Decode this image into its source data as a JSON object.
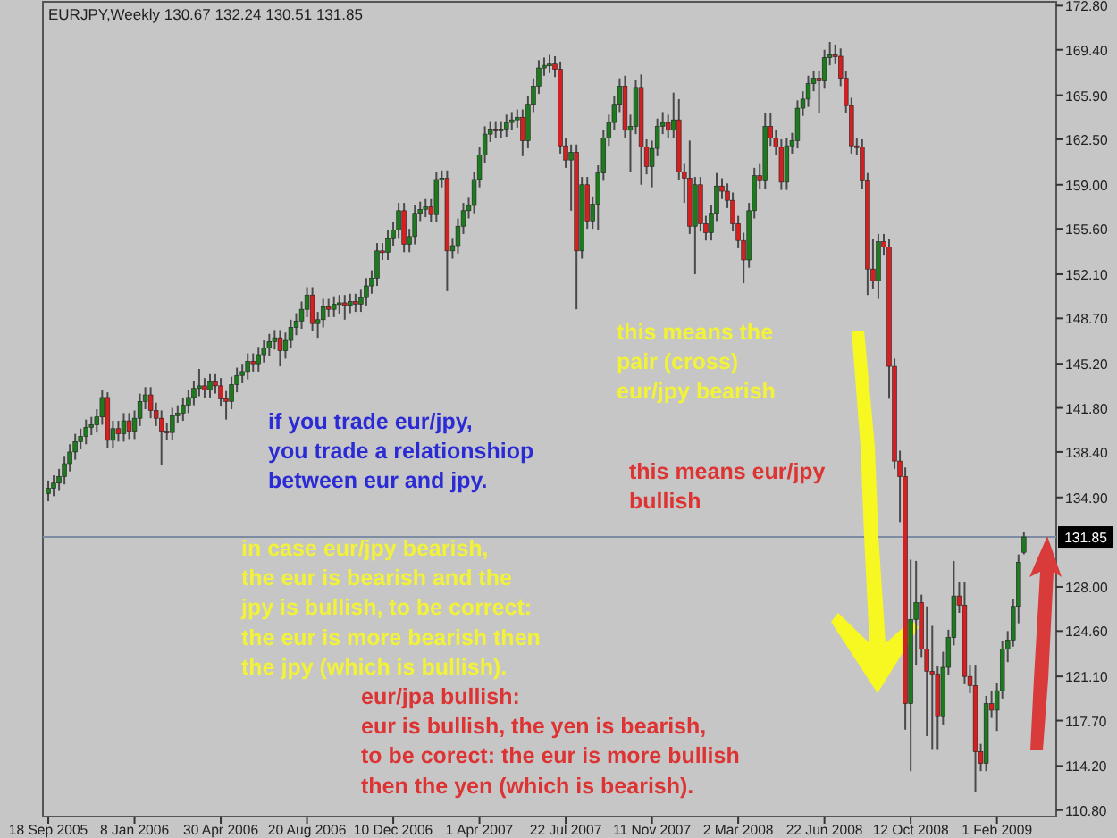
{
  "chart_data": {
    "type": "candlestick",
    "title": "EURJPY,Weekly 130.67 132.24 130.51 131.85",
    "x": [
      "2005-09-18",
      "2005-09-25",
      "2005-10-02",
      "2005-10-09",
      "2005-10-16",
      "2005-10-23",
      "2005-10-30",
      "2005-11-06",
      "2005-11-13",
      "2005-11-20",
      "2005-11-27",
      "2005-12-04",
      "2005-12-11",
      "2005-12-18",
      "2005-12-25",
      "2006-01-01",
      "2006-01-08",
      "2006-01-15",
      "2006-01-22",
      "2006-01-29",
      "2006-02-05",
      "2006-02-12",
      "2006-02-19",
      "2006-02-26",
      "2006-03-05",
      "2006-03-12",
      "2006-03-19",
      "2006-03-26",
      "2006-04-02",
      "2006-04-09",
      "2006-04-16",
      "2006-04-23",
      "2006-04-30",
      "2006-05-07",
      "2006-05-14",
      "2006-05-21",
      "2006-05-28",
      "2006-06-04",
      "2006-06-11",
      "2006-06-18",
      "2006-06-25",
      "2006-07-02",
      "2006-07-09",
      "2006-07-16",
      "2006-07-23",
      "2006-07-30",
      "2006-08-06",
      "2006-08-13",
      "2006-08-20",
      "2006-08-27",
      "2006-09-03",
      "2006-09-10",
      "2006-09-17",
      "2006-09-24",
      "2006-10-01",
      "2006-10-08",
      "2006-10-15",
      "2006-10-22",
      "2006-10-29",
      "2006-11-05",
      "2006-11-12",
      "2006-11-19",
      "2006-11-26",
      "2006-12-03",
      "2006-12-10",
      "2006-12-17",
      "2006-12-24",
      "2006-12-31",
      "2007-01-07",
      "2007-01-14",
      "2007-01-21",
      "2007-01-28",
      "2007-02-04",
      "2007-02-11",
      "2007-02-18",
      "2007-02-25",
      "2007-03-04",
      "2007-03-11",
      "2007-03-18",
      "2007-03-25",
      "2007-04-01",
      "2007-04-08",
      "2007-04-15",
      "2007-04-22",
      "2007-04-29",
      "2007-05-06",
      "2007-05-13",
      "2007-05-20",
      "2007-05-27",
      "2007-06-03",
      "2007-06-10",
      "2007-06-17",
      "2007-06-24",
      "2007-07-01",
      "2007-07-08",
      "2007-07-15",
      "2007-07-22",
      "2007-07-29",
      "2007-08-05",
      "2007-08-12",
      "2007-08-19",
      "2007-08-26",
      "2007-09-02",
      "2007-09-09",
      "2007-09-16",
      "2007-09-23",
      "2007-09-30",
      "2007-10-07",
      "2007-10-14",
      "2007-10-21",
      "2007-10-28",
      "2007-11-04",
      "2007-11-11",
      "2007-11-18",
      "2007-11-25",
      "2007-12-02",
      "2007-12-09",
      "2007-12-16",
      "2007-12-23",
      "2007-12-30",
      "2008-01-06",
      "2008-01-13",
      "2008-01-20",
      "2008-01-27",
      "2008-02-03",
      "2008-02-10",
      "2008-02-17",
      "2008-02-24",
      "2008-03-02",
      "2008-03-09",
      "2008-03-16",
      "2008-03-23",
      "2008-03-30",
      "2008-04-06",
      "2008-04-13",
      "2008-04-20",
      "2008-04-27",
      "2008-05-04",
      "2008-05-11",
      "2008-05-18",
      "2008-05-25",
      "2008-06-01",
      "2008-06-08",
      "2008-06-15",
      "2008-06-22",
      "2008-06-29",
      "2008-07-06",
      "2008-07-13",
      "2008-07-20",
      "2008-07-27",
      "2008-08-03",
      "2008-08-10",
      "2008-08-17",
      "2008-08-24",
      "2008-08-31",
      "2008-09-07",
      "2008-09-14",
      "2008-09-21",
      "2008-09-28",
      "2008-10-05",
      "2008-10-12",
      "2008-10-19",
      "2008-10-26",
      "2008-11-02",
      "2008-11-09",
      "2008-11-16",
      "2008-11-23",
      "2008-11-30",
      "2008-12-07",
      "2008-12-14",
      "2008-12-21",
      "2008-12-28",
      "2009-01-04",
      "2009-01-11",
      "2009-01-18",
      "2009-01-25",
      "2009-02-01",
      "2009-02-08",
      "2009-02-15",
      "2009-02-22",
      "2009-03-01",
      "2009-03-08"
    ],
    "ohlc": [
      [
        135.2,
        136.2,
        134.6,
        135.6
      ],
      [
        135.6,
        136.6,
        135.0,
        136.0
      ],
      [
        136.0,
        137.1,
        135.4,
        136.5
      ],
      [
        136.5,
        138.1,
        135.9,
        137.5
      ],
      [
        137.5,
        139.0,
        136.9,
        138.4
      ],
      [
        138.4,
        139.8,
        137.8,
        139.2
      ],
      [
        139.2,
        140.2,
        138.6,
        139.6
      ],
      [
        139.6,
        140.9,
        139.0,
        140.3
      ],
      [
        140.3,
        141.1,
        139.7,
        140.5
      ],
      [
        140.5,
        141.7,
        139.9,
        141.1
      ],
      [
        141.1,
        143.2,
        140.5,
        142.6
      ],
      [
        142.6,
        143.0,
        138.7,
        139.3
      ],
      [
        139.3,
        140.8,
        138.7,
        140.2
      ],
      [
        140.2,
        140.8,
        139.2,
        139.8
      ],
      [
        139.8,
        141.4,
        139.2,
        140.8
      ],
      [
        140.8,
        141.4,
        139.4,
        140.0
      ],
      [
        140.0,
        141.6,
        139.4,
        141.0
      ],
      [
        141.0,
        142.9,
        140.4,
        142.3
      ],
      [
        142.3,
        143.4,
        141.7,
        142.8
      ],
      [
        142.8,
        143.4,
        141.0,
        141.6
      ],
      [
        141.6,
        142.2,
        140.4,
        141.0
      ],
      [
        141.0,
        141.6,
        137.4,
        140.0
      ],
      [
        140.0,
        140.6,
        139.3,
        139.9
      ],
      [
        139.9,
        141.8,
        139.3,
        141.2
      ],
      [
        141.2,
        142.0,
        140.6,
        141.4
      ],
      [
        141.4,
        142.6,
        140.8,
        142.0
      ],
      [
        142.0,
        143.2,
        141.4,
        142.6
      ],
      [
        142.6,
        143.9,
        142.0,
        143.3
      ],
      [
        143.3,
        144.8,
        142.7,
        143.5
      ],
      [
        143.5,
        144.1,
        142.6,
        143.2
      ],
      [
        143.2,
        144.4,
        142.6,
        143.8
      ],
      [
        143.8,
        144.4,
        142.9,
        143.5
      ],
      [
        143.5,
        144.1,
        141.9,
        142.5
      ],
      [
        142.5,
        143.1,
        140.9,
        142.3
      ],
      [
        142.3,
        144.2,
        141.7,
        143.6
      ],
      [
        143.6,
        144.9,
        143.0,
        144.3
      ],
      [
        144.3,
        145.2,
        143.7,
        144.6
      ],
      [
        144.6,
        146.0,
        144.0,
        145.4
      ],
      [
        145.4,
        146.0,
        144.6,
        145.2
      ],
      [
        145.2,
        146.5,
        144.6,
        145.9
      ],
      [
        145.9,
        147.0,
        145.3,
        146.4
      ],
      [
        146.4,
        147.5,
        145.8,
        146.9
      ],
      [
        146.9,
        147.8,
        146.3,
        147.2
      ],
      [
        147.2,
        147.8,
        145.0,
        146.2
      ],
      [
        146.2,
        147.6,
        145.6,
        147.0
      ],
      [
        147.0,
        148.6,
        146.4,
        148.0
      ],
      [
        148.0,
        149.1,
        147.4,
        148.5
      ],
      [
        148.5,
        150.0,
        147.9,
        149.4
      ],
      [
        149.4,
        151.1,
        148.8,
        150.5
      ],
      [
        150.5,
        151.1,
        147.7,
        148.3
      ],
      [
        148.3,
        149.2,
        147.2,
        148.6
      ],
      [
        148.6,
        150.2,
        148.0,
        149.6
      ],
      [
        149.6,
        150.2,
        148.8,
        149.4
      ],
      [
        149.4,
        150.4,
        148.8,
        149.8
      ],
      [
        149.8,
        150.5,
        149.0,
        149.9
      ],
      [
        149.9,
        150.5,
        148.6,
        149.7
      ],
      [
        149.7,
        150.6,
        149.1,
        150.0
      ],
      [
        150.0,
        150.6,
        149.2,
        149.8
      ],
      [
        149.8,
        150.9,
        149.2,
        150.3
      ],
      [
        150.3,
        151.8,
        149.7,
        151.2
      ],
      [
        151.2,
        152.4,
        150.6,
        151.8
      ],
      [
        151.8,
        154.5,
        151.2,
        153.9
      ],
      [
        153.9,
        154.5,
        153.2,
        153.8
      ],
      [
        153.8,
        155.5,
        153.2,
        154.9
      ],
      [
        154.9,
        156.1,
        154.3,
        155.5
      ],
      [
        155.5,
        157.6,
        154.9,
        157.0
      ],
      [
        157.0,
        157.6,
        153.8,
        154.4
      ],
      [
        154.4,
        155.6,
        153.8,
        155.0
      ],
      [
        155.0,
        157.4,
        154.4,
        156.8
      ],
      [
        156.8,
        157.7,
        156.2,
        157.1
      ],
      [
        157.1,
        157.9,
        156.5,
        157.3
      ],
      [
        157.3,
        157.9,
        156.1,
        156.7
      ],
      [
        156.7,
        160.0,
        156.1,
        159.4
      ],
      [
        159.4,
        160.1,
        158.8,
        159.5
      ],
      [
        159.5,
        160.1,
        150.8,
        153.9
      ],
      [
        153.9,
        154.9,
        153.3,
        154.3
      ],
      [
        154.3,
        156.4,
        153.7,
        155.8
      ],
      [
        155.8,
        157.6,
        155.2,
        157.0
      ],
      [
        157.0,
        158.0,
        156.4,
        157.4
      ],
      [
        157.4,
        160.0,
        156.8,
        159.4
      ],
      [
        159.4,
        161.9,
        158.8,
        161.3
      ],
      [
        161.3,
        163.5,
        160.7,
        162.9
      ],
      [
        162.9,
        163.9,
        162.3,
        163.3
      ],
      [
        163.3,
        163.9,
        162.6,
        163.2
      ],
      [
        163.2,
        163.9,
        162.6,
        163.3
      ],
      [
        163.3,
        164.4,
        162.7,
        163.8
      ],
      [
        163.8,
        164.6,
        163.2,
        164.0
      ],
      [
        164.0,
        164.8,
        163.4,
        164.2
      ],
      [
        164.2,
        164.8,
        161.2,
        162.4
      ],
      [
        162.4,
        165.8,
        161.8,
        165.2
      ],
      [
        165.2,
        167.2,
        164.6,
        166.6
      ],
      [
        166.6,
        168.6,
        166.0,
        168.0
      ],
      [
        168.0,
        168.8,
        167.4,
        168.2
      ],
      [
        168.2,
        169.0,
        167.6,
        168.3
      ],
      [
        168.3,
        168.9,
        167.3,
        167.9
      ],
      [
        167.9,
        168.5,
        161.4,
        162.0
      ],
      [
        162.0,
        162.6,
        160.3,
        160.9
      ],
      [
        160.9,
        162.1,
        157.0,
        161.5
      ],
      [
        161.5,
        162.1,
        149.4,
        153.9
      ],
      [
        153.9,
        159.6,
        153.3,
        159.0
      ],
      [
        159.0,
        159.6,
        155.6,
        156.2
      ],
      [
        156.2,
        158.1,
        155.6,
        157.5
      ],
      [
        157.5,
        160.5,
        155.5,
        159.9
      ],
      [
        159.9,
        163.2,
        159.3,
        162.6
      ],
      [
        162.6,
        164.4,
        162.0,
        163.8
      ],
      [
        163.8,
        165.8,
        163.2,
        165.2
      ],
      [
        165.2,
        167.2,
        164.6,
        166.6
      ],
      [
        166.6,
        167.4,
        162.6,
        163.2
      ],
      [
        163.2,
        164.4,
        160.0,
        163.5
      ],
      [
        163.5,
        167.1,
        162.9,
        166.5
      ],
      [
        166.5,
        167.5,
        159.0,
        161.9
      ],
      [
        161.9,
        162.5,
        159.8,
        160.4
      ],
      [
        160.4,
        162.4,
        158.8,
        161.8
      ],
      [
        161.8,
        164.1,
        161.2,
        163.5
      ],
      [
        163.5,
        164.6,
        162.9,
        163.8
      ],
      [
        163.8,
        164.4,
        162.6,
        163.2
      ],
      [
        163.2,
        166.1,
        162.6,
        164.0
      ],
      [
        164.0,
        165.6,
        159.4,
        160.0
      ],
      [
        160.0,
        160.6,
        157.6,
        159.5
      ],
      [
        159.5,
        162.4,
        155.2,
        155.8
      ],
      [
        155.8,
        159.6,
        152.1,
        159.0
      ],
      [
        159.0,
        159.6,
        155.4,
        156.0
      ],
      [
        156.0,
        156.6,
        154.7,
        155.3
      ],
      [
        155.3,
        157.4,
        154.7,
        156.8
      ],
      [
        156.8,
        159.9,
        156.2,
        158.9
      ],
      [
        158.9,
        159.5,
        157.9,
        158.5
      ],
      [
        158.5,
        159.1,
        157.2,
        157.8
      ],
      [
        157.8,
        158.4,
        155.4,
        156.0
      ],
      [
        156.0,
        156.6,
        154.1,
        154.7
      ],
      [
        154.7,
        155.3,
        151.4,
        153.2
      ],
      [
        153.2,
        157.6,
        152.6,
        157.0
      ],
      [
        157.0,
        160.3,
        156.4,
        159.7
      ],
      [
        159.7,
        160.6,
        158.7,
        159.3
      ],
      [
        159.3,
        164.5,
        158.7,
        163.5
      ],
      [
        163.5,
        164.5,
        162.0,
        162.6
      ],
      [
        162.6,
        163.2,
        161.3,
        161.9
      ],
      [
        161.9,
        162.5,
        158.6,
        159.2
      ],
      [
        159.2,
        162.6,
        158.6,
        162.0
      ],
      [
        162.0,
        163.0,
        161.4,
        162.4
      ],
      [
        162.4,
        165.5,
        161.8,
        164.9
      ],
      [
        164.9,
        166.2,
        164.3,
        165.6
      ],
      [
        165.6,
        167.4,
        165.0,
        166.8
      ],
      [
        166.8,
        167.8,
        166.2,
        167.2
      ],
      [
        167.2,
        167.8,
        164.5,
        167.0
      ],
      [
        167.0,
        169.4,
        166.4,
        168.8
      ],
      [
        168.8,
        170.0,
        168.2,
        169.0
      ],
      [
        169.0,
        169.8,
        168.3,
        168.9
      ],
      [
        168.9,
        169.5,
        166.6,
        167.2
      ],
      [
        167.2,
        167.8,
        164.5,
        165.1
      ],
      [
        165.1,
        165.7,
        161.4,
        162.0
      ],
      [
        162.0,
        162.6,
        161.3,
        161.9
      ],
      [
        161.9,
        162.5,
        158.7,
        159.3
      ],
      [
        159.3,
        159.9,
        150.5,
        152.5
      ],
      [
        152.5,
        154.8,
        151.0,
        151.6
      ],
      [
        151.6,
        155.2,
        150.2,
        154.6
      ],
      [
        154.6,
        155.2,
        153.6,
        154.2
      ],
      [
        154.2,
        154.8,
        142.5,
        145.0
      ],
      [
        145.0,
        145.6,
        137.1,
        137.7
      ],
      [
        137.7,
        138.5,
        133.0,
        136.5
      ],
      [
        136.5,
        137.2,
        117.0,
        119.0
      ],
      [
        119.0,
        130.1,
        113.8,
        125.5
      ],
      [
        125.5,
        130.0,
        122.0,
        126.8
      ],
      [
        126.8,
        127.4,
        122.6,
        123.2
      ],
      [
        123.2,
        126.5,
        116.5,
        121.5
      ],
      [
        121.5,
        125.0,
        115.5,
        121.3
      ],
      [
        121.3,
        121.9,
        115.5,
        118.0
      ],
      [
        118.0,
        123.0,
        117.4,
        121.8
      ],
      [
        121.8,
        124.7,
        121.2,
        124.1
      ],
      [
        124.1,
        130.0,
        123.5,
        127.3
      ],
      [
        127.3,
        128.4,
        126.0,
        126.6
      ],
      [
        126.6,
        128.4,
        120.5,
        121.1
      ],
      [
        121.1,
        122.0,
        119.8,
        120.4
      ],
      [
        120.4,
        122.0,
        112.2,
        115.3
      ],
      [
        115.3,
        115.9,
        113.8,
        114.4
      ],
      [
        114.4,
        119.6,
        113.8,
        119.0
      ],
      [
        119.0,
        120.0,
        117.9,
        118.5
      ],
      [
        118.5,
        120.6,
        116.9,
        120.0
      ],
      [
        120.0,
        123.8,
        119.4,
        123.2
      ],
      [
        123.2,
        124.6,
        122.2,
        123.9
      ],
      [
        123.9,
        127.1,
        123.4,
        126.5
      ],
      [
        126.5,
        130.5,
        125.2,
        129.9
      ],
      [
        130.67,
        132.24,
        130.51,
        131.85
      ]
    ],
    "colors": [
      "#1e7a1e",
      "#1e7a1e",
      "#1e7a1e",
      "#1e7a1e",
      "#1e7a1e",
      "#1e7a1e",
      "#1e7a1e",
      "#1e7a1e",
      "#1e7a1e",
      "#1e7a1e",
      "#1e7a1e",
      "#d42020",
      "#1e7a1e",
      "#d42020",
      "#1e7a1e",
      "#d42020",
      "#1e7a1e",
      "#1e7a1e",
      "#1e7a1e",
      "#d42020",
      "#d42020",
      "#d42020",
      "#d42020",
      "#1e7a1e",
      "#1e7a1e",
      "#1e7a1e",
      "#1e7a1e",
      "#1e7a1e",
      "#1e7a1e",
      "#d42020",
      "#1e7a1e",
      "#d42020",
      "#d42020",
      "#d42020",
      "#1e7a1e",
      "#1e7a1e",
      "#1e7a1e",
      "#1e7a1e",
      "#d42020",
      "#1e7a1e",
      "#1e7a1e",
      "#1e7a1e",
      "#1e7a1e",
      "#d42020",
      "#1e7a1e",
      "#1e7a1e",
      "#1e7a1e",
      "#1e7a1e",
      "#1e7a1e",
      "#d42020",
      "#1e7a1e",
      "#1e7a1e",
      "#d42020",
      "#1e7a1e",
      "#1e7a1e",
      "#d42020",
      "#1e7a1e",
      "#d42020",
      "#1e7a1e",
      "#1e7a1e",
      "#1e7a1e",
      "#1e7a1e",
      "#d42020",
      "#1e7a1e",
      "#1e7a1e",
      "#1e7a1e",
      "#d42020",
      "#1e7a1e",
      "#1e7a1e",
      "#1e7a1e",
      "#1e7a1e",
      "#d42020",
      "#1e7a1e",
      "#1e7a1e",
      "#d42020",
      "#1e7a1e",
      "#1e7a1e",
      "#1e7a1e",
      "#1e7a1e",
      "#1e7a1e",
      "#1e7a1e",
      "#1e7a1e",
      "#1e7a1e",
      "#d42020",
      "#1e7a1e",
      "#1e7a1e",
      "#1e7a1e",
      "#1e7a1e",
      "#d42020",
      "#1e7a1e",
      "#1e7a1e",
      "#1e7a1e",
      "#1e7a1e",
      "#1e7a1e",
      "#d42020",
      "#d42020",
      "#d42020",
      "#1e7a1e",
      "#d42020",
      "#1e7a1e",
      "#d42020",
      "#1e7a1e",
      "#1e7a1e",
      "#1e7a1e",
      "#1e7a1e",
      "#1e7a1e",
      "#1e7a1e",
      "#d42020",
      "#1e7a1e",
      "#1e7a1e",
      "#d42020",
      "#d42020",
      "#1e7a1e",
      "#1e7a1e",
      "#1e7a1e",
      "#d42020",
      "#1e7a1e",
      "#d42020",
      "#d42020",
      "#d42020",
      "#1e7a1e",
      "#d42020",
      "#d42020",
      "#1e7a1e",
      "#1e7a1e",
      "#d42020",
      "#d42020",
      "#d42020",
      "#d42020",
      "#d42020",
      "#1e7a1e",
      "#1e7a1e",
      "#d42020",
      "#1e7a1e",
      "#d42020",
      "#d42020",
      "#d42020",
      "#1e7a1e",
      "#1e7a1e",
      "#1e7a1e",
      "#1e7a1e",
      "#1e7a1e",
      "#1e7a1e",
      "#d42020",
      "#1e7a1e",
      "#1e7a1e",
      "#d42020",
      "#d42020",
      "#d42020",
      "#d42020",
      "#d42020",
      "#d42020",
      "#d42020",
      "#d42020",
      "#1e7a1e",
      "#d42020",
      "#d42020",
      "#d42020",
      "#d42020",
      "#d42020",
      "#1e7a1e",
      "#1e7a1e",
      "#d42020",
      "#d42020",
      "#d42020",
      "#d42020",
      "#1e7a1e",
      "#1e7a1e",
      "#1e7a1e",
      "#d42020",
      "#d42020",
      "#d42020",
      "#d42020",
      "#d42020",
      "#1e7a1e",
      "#d42020",
      "#1e7a1e",
      "#1e7a1e",
      "#1e7a1e",
      "#1e7a1e",
      "#1e7a1e",
      "#1e7a1e"
    ],
    "xlim": [
      "2005-09-11",
      "2009-04-19"
    ],
    "xticks": [
      {
        "value": "2005-09-18",
        "label": "18 Sep 2005"
      },
      {
        "value": "2006-01-08",
        "label": "8 Jan 2006"
      },
      {
        "value": "2006-04-30",
        "label": "30 Apr 2006"
      },
      {
        "value": "2006-08-20",
        "label": "20 Aug 2006"
      },
      {
        "value": "2006-12-10",
        "label": "10 Dec 2006"
      },
      {
        "value": "2007-04-01",
        "label": "1 Apr 2007"
      },
      {
        "value": "2007-07-22",
        "label": "22 Jul 2007"
      },
      {
        "value": "2007-11-11",
        "label": "11 Nov 2007"
      },
      {
        "value": "2008-03-02",
        "label": "2 Mar 2008"
      },
      {
        "value": "2008-06-22",
        "label": "22 Jun 2008"
      },
      {
        "value": "2008-10-12",
        "label": "12 Oct 2008"
      },
      {
        "value": "2009-02-01",
        "label": "1 Feb 2009"
      }
    ],
    "ylim": [
      110.3,
      173.1
    ],
    "yticks": [
      {
        "value": 110.8,
        "label": "110.80"
      },
      {
        "value": 114.2,
        "label": "114.20"
      },
      {
        "value": 117.7,
        "label": "117.70"
      },
      {
        "value": 121.1,
        "label": "121.10"
      },
      {
        "value": 124.6,
        "label": "124.60"
      },
      {
        "value": 128,
        "label": "128.00"
      },
      {
        "value": 134.9,
        "label": "134.90"
      },
      {
        "value": 138.4,
        "label": "138.40"
      },
      {
        "value": 141.8,
        "label": "141.80"
      },
      {
        "value": 145.2,
        "label": "145.20"
      },
      {
        "value": 148.7,
        "label": "148.70"
      },
      {
        "value": 152.1,
        "label": "152.10"
      },
      {
        "value": 155.6,
        "label": "155.60"
      },
      {
        "value": 159,
        "label": "159.00"
      },
      {
        "value": 162.5,
        "label": "162.50"
      },
      {
        "value": 165.9,
        "label": "165.90"
      },
      {
        "value": 169.4,
        "label": "169.40"
      },
      {
        "value": 172.8,
        "label": "172.80"
      }
    ],
    "ref_lines": [
      {
        "axis": "y",
        "value": 131.85,
        "label": "131.85",
        "color": "#7d8ba3"
      }
    ],
    "annotations": [
      "if you trade eur/jpy,\nyou trade a relationshiop\nbetween eur and jpy.",
      "this means the\npair (cross)\neur/jpy bearish",
      "this means eur/jpy\nbullish",
      "in case eur/jpy bearish,\nthe eur is bearish and the\njpy is bullish, to be correct:\nthe eur is more bearish then\nthe jpy (which is bullish).",
      "eur/jpa bullish:\neur is bullish, the yen is bearish,\nto be corect: the eur is more bullish\nthen the yen (which is bearish)."
    ]
  }
}
